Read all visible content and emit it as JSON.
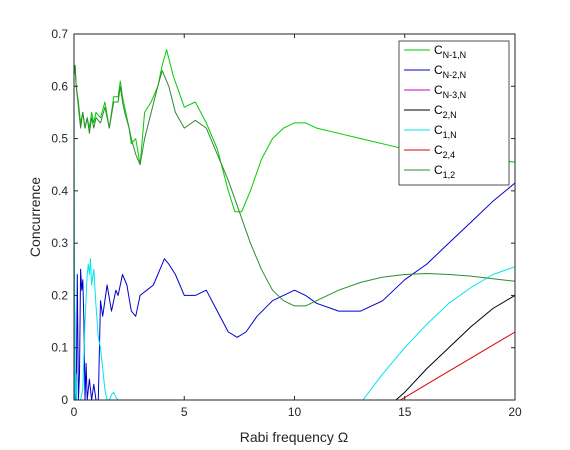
{
  "chart_data": {
    "type": "line",
    "title": "",
    "xlabel": "Rabi frequency Ω",
    "ylabel": "Concurrence",
    "xlim": [
      0,
      20
    ],
    "ylim": [
      0,
      0.7
    ],
    "x_ticks": [
      "0",
      "5",
      "10",
      "15",
      "20"
    ],
    "y_ticks": [
      "0",
      "0.1",
      "0.2",
      "0.3",
      "0.4",
      "0.5",
      "0.6",
      "0.7"
    ],
    "grid": false,
    "legend_position": "top-right",
    "series": [
      {
        "name": "N-1,N",
        "color": "#00cc00",
        "x": [
          0,
          0.05,
          0.1,
          0.2,
          0.3,
          0.4,
          0.5,
          0.6,
          0.7,
          0.8,
          0.9,
          1.0,
          1.2,
          1.4,
          1.6,
          1.8,
          2.0,
          2.1,
          2.2,
          2.3,
          2.5,
          2.6,
          2.8,
          3.0,
          3.2,
          3.5,
          3.8,
          4.0,
          4.2,
          4.5,
          5.0,
          5.5,
          6.0,
          6.5,
          7.0,
          7.3,
          7.6,
          8.0,
          8.5,
          9.0,
          9.5,
          10.0,
          10.5,
          11.0,
          12.0,
          13.0,
          14.0,
          15.0,
          16.0,
          17.0,
          18.0,
          19.0,
          20.0
        ],
        "y": [
          0.62,
          0.64,
          0.6,
          0.57,
          0.53,
          0.55,
          0.52,
          0.54,
          0.52,
          0.55,
          0.53,
          0.55,
          0.54,
          0.57,
          0.52,
          0.58,
          0.58,
          0.61,
          0.58,
          0.56,
          0.52,
          0.49,
          0.5,
          0.45,
          0.55,
          0.57,
          0.6,
          0.64,
          0.67,
          0.62,
          0.56,
          0.57,
          0.53,
          0.48,
          0.4,
          0.36,
          0.36,
          0.4,
          0.46,
          0.5,
          0.52,
          0.53,
          0.53,
          0.52,
          0.51,
          0.5,
          0.49,
          0.48,
          0.475,
          0.47,
          0.465,
          0.46,
          0.455
        ]
      },
      {
        "name": "N-2,N",
        "color": "#0000cc",
        "x": [
          0,
          0.03,
          0.06,
          0.1,
          0.15,
          0.2,
          0.25,
          0.3,
          0.35,
          0.4,
          0.45,
          0.5,
          0.55,
          0.6,
          0.7,
          0.8,
          0.9,
          1.0,
          1.1,
          1.2,
          1.3,
          1.5,
          1.7,
          1.9,
          2.0,
          2.2,
          2.4,
          2.6,
          2.8,
          3.0,
          3.3,
          3.6,
          3.9,
          4.1,
          4.3,
          4.6,
          5.0,
          5.5,
          6.0,
          6.5,
          7.0,
          7.4,
          7.8,
          8.3,
          9.0,
          9.5,
          10.0,
          10.5,
          11.0,
          12.0,
          13.0,
          14.0,
          15.0,
          16.0,
          17.0,
          18.0,
          19.0,
          20.0
        ],
        "y": [
          0.02,
          0.17,
          0.0,
          0.0,
          0.24,
          0.0,
          0.05,
          0.25,
          0.21,
          0.23,
          0.15,
          0.0,
          0.07,
          0.0,
          0.04,
          0.0,
          0.03,
          0.0,
          0.0,
          0.19,
          0.16,
          0.22,
          0.17,
          0.21,
          0.2,
          0.24,
          0.22,
          0.17,
          0.16,
          0.2,
          0.21,
          0.22,
          0.25,
          0.27,
          0.26,
          0.24,
          0.2,
          0.2,
          0.21,
          0.17,
          0.13,
          0.12,
          0.13,
          0.16,
          0.19,
          0.2,
          0.21,
          0.2,
          0.185,
          0.17,
          0.17,
          0.19,
          0.23,
          0.26,
          0.3,
          0.34,
          0.38,
          0.415
        ]
      },
      {
        "name": "N-3,N",
        "color": "#cc00cc",
        "x": [
          0,
          14.8,
          20
        ],
        "y": [
          0,
          0,
          0
        ]
      },
      {
        "name": "2,N",
        "color": "#000000",
        "x": [
          0,
          14.6,
          15.0,
          16.0,
          17.0,
          18.0,
          19.0,
          20.0
        ],
        "y": [
          0,
          0,
          0.015,
          0.06,
          0.1,
          0.14,
          0.175,
          0.2
        ]
      },
      {
        "name": "1,N",
        "color": "#00e5ee",
        "x": [
          0,
          0.02,
          0.05,
          0.1,
          0.12,
          0.15,
          0.2,
          0.3,
          0.4,
          0.5,
          0.6,
          0.65,
          0.7,
          0.75,
          0.8,
          0.9,
          1.0,
          1.1,
          1.2,
          1.3,
          1.4,
          1.5,
          1.6,
          1.7,
          1.8,
          1.9,
          2.0,
          2.5,
          3.0,
          5.0,
          8.0,
          10.0,
          12.0,
          13.0,
          13.1,
          14.0,
          15.0,
          16.0,
          17.0,
          18.0,
          19.0,
          20.0
        ],
        "y": [
          0.63,
          0.3,
          0.0,
          0.05,
          0.0,
          0.0,
          0.0,
          0.0,
          0.02,
          0.15,
          0.24,
          0.26,
          0.24,
          0.27,
          0.22,
          0.25,
          0.18,
          0.12,
          0.1,
          0.06,
          0.02,
          0.0,
          0.0,
          0.01,
          0.015,
          0.005,
          0.0,
          0.0,
          0.0,
          0.0,
          0.0,
          0.0,
          0.0,
          0.0,
          0.0,
          0.05,
          0.1,
          0.145,
          0.185,
          0.215,
          0.24,
          0.255
        ]
      },
      {
        "name": "2,4",
        "color": "#dd0000",
        "x": [
          0,
          14.8,
          15.0,
          16.0,
          17.0,
          18.0,
          19.0,
          20.0
        ],
        "y": [
          0,
          0,
          0.005,
          0.03,
          0.055,
          0.08,
          0.105,
          0.13
        ]
      },
      {
        "name": "1,2",
        "color": "#2e8b2e",
        "x": [
          0,
          0.05,
          0.1,
          0.2,
          0.3,
          0.4,
          0.5,
          0.6,
          0.7,
          0.8,
          0.9,
          1.0,
          1.2,
          1.4,
          1.6,
          1.8,
          2.0,
          2.1,
          2.2,
          2.3,
          2.5,
          2.6,
          2.8,
          3.0,
          3.2,
          3.5,
          3.8,
          4.0,
          4.3,
          4.6,
          5.0,
          5.5,
          6.0,
          6.5,
          7.0,
          7.5,
          8.0,
          8.5,
          9.0,
          9.5,
          10.0,
          10.5,
          11.0,
          12.0,
          13.0,
          14.0,
          15.0,
          16.0,
          17.0,
          18.0,
          19.0,
          20.0
        ],
        "y": [
          0.62,
          0.64,
          0.6,
          0.56,
          0.52,
          0.55,
          0.52,
          0.54,
          0.51,
          0.54,
          0.52,
          0.54,
          0.53,
          0.56,
          0.52,
          0.57,
          0.57,
          0.6,
          0.57,
          0.55,
          0.52,
          0.5,
          0.47,
          0.45,
          0.5,
          0.55,
          0.6,
          0.63,
          0.6,
          0.55,
          0.52,
          0.535,
          0.52,
          0.47,
          0.42,
          0.36,
          0.3,
          0.25,
          0.21,
          0.19,
          0.18,
          0.18,
          0.19,
          0.21,
          0.225,
          0.235,
          0.24,
          0.242,
          0.24,
          0.237,
          0.232,
          0.227
        ]
      }
    ]
  }
}
